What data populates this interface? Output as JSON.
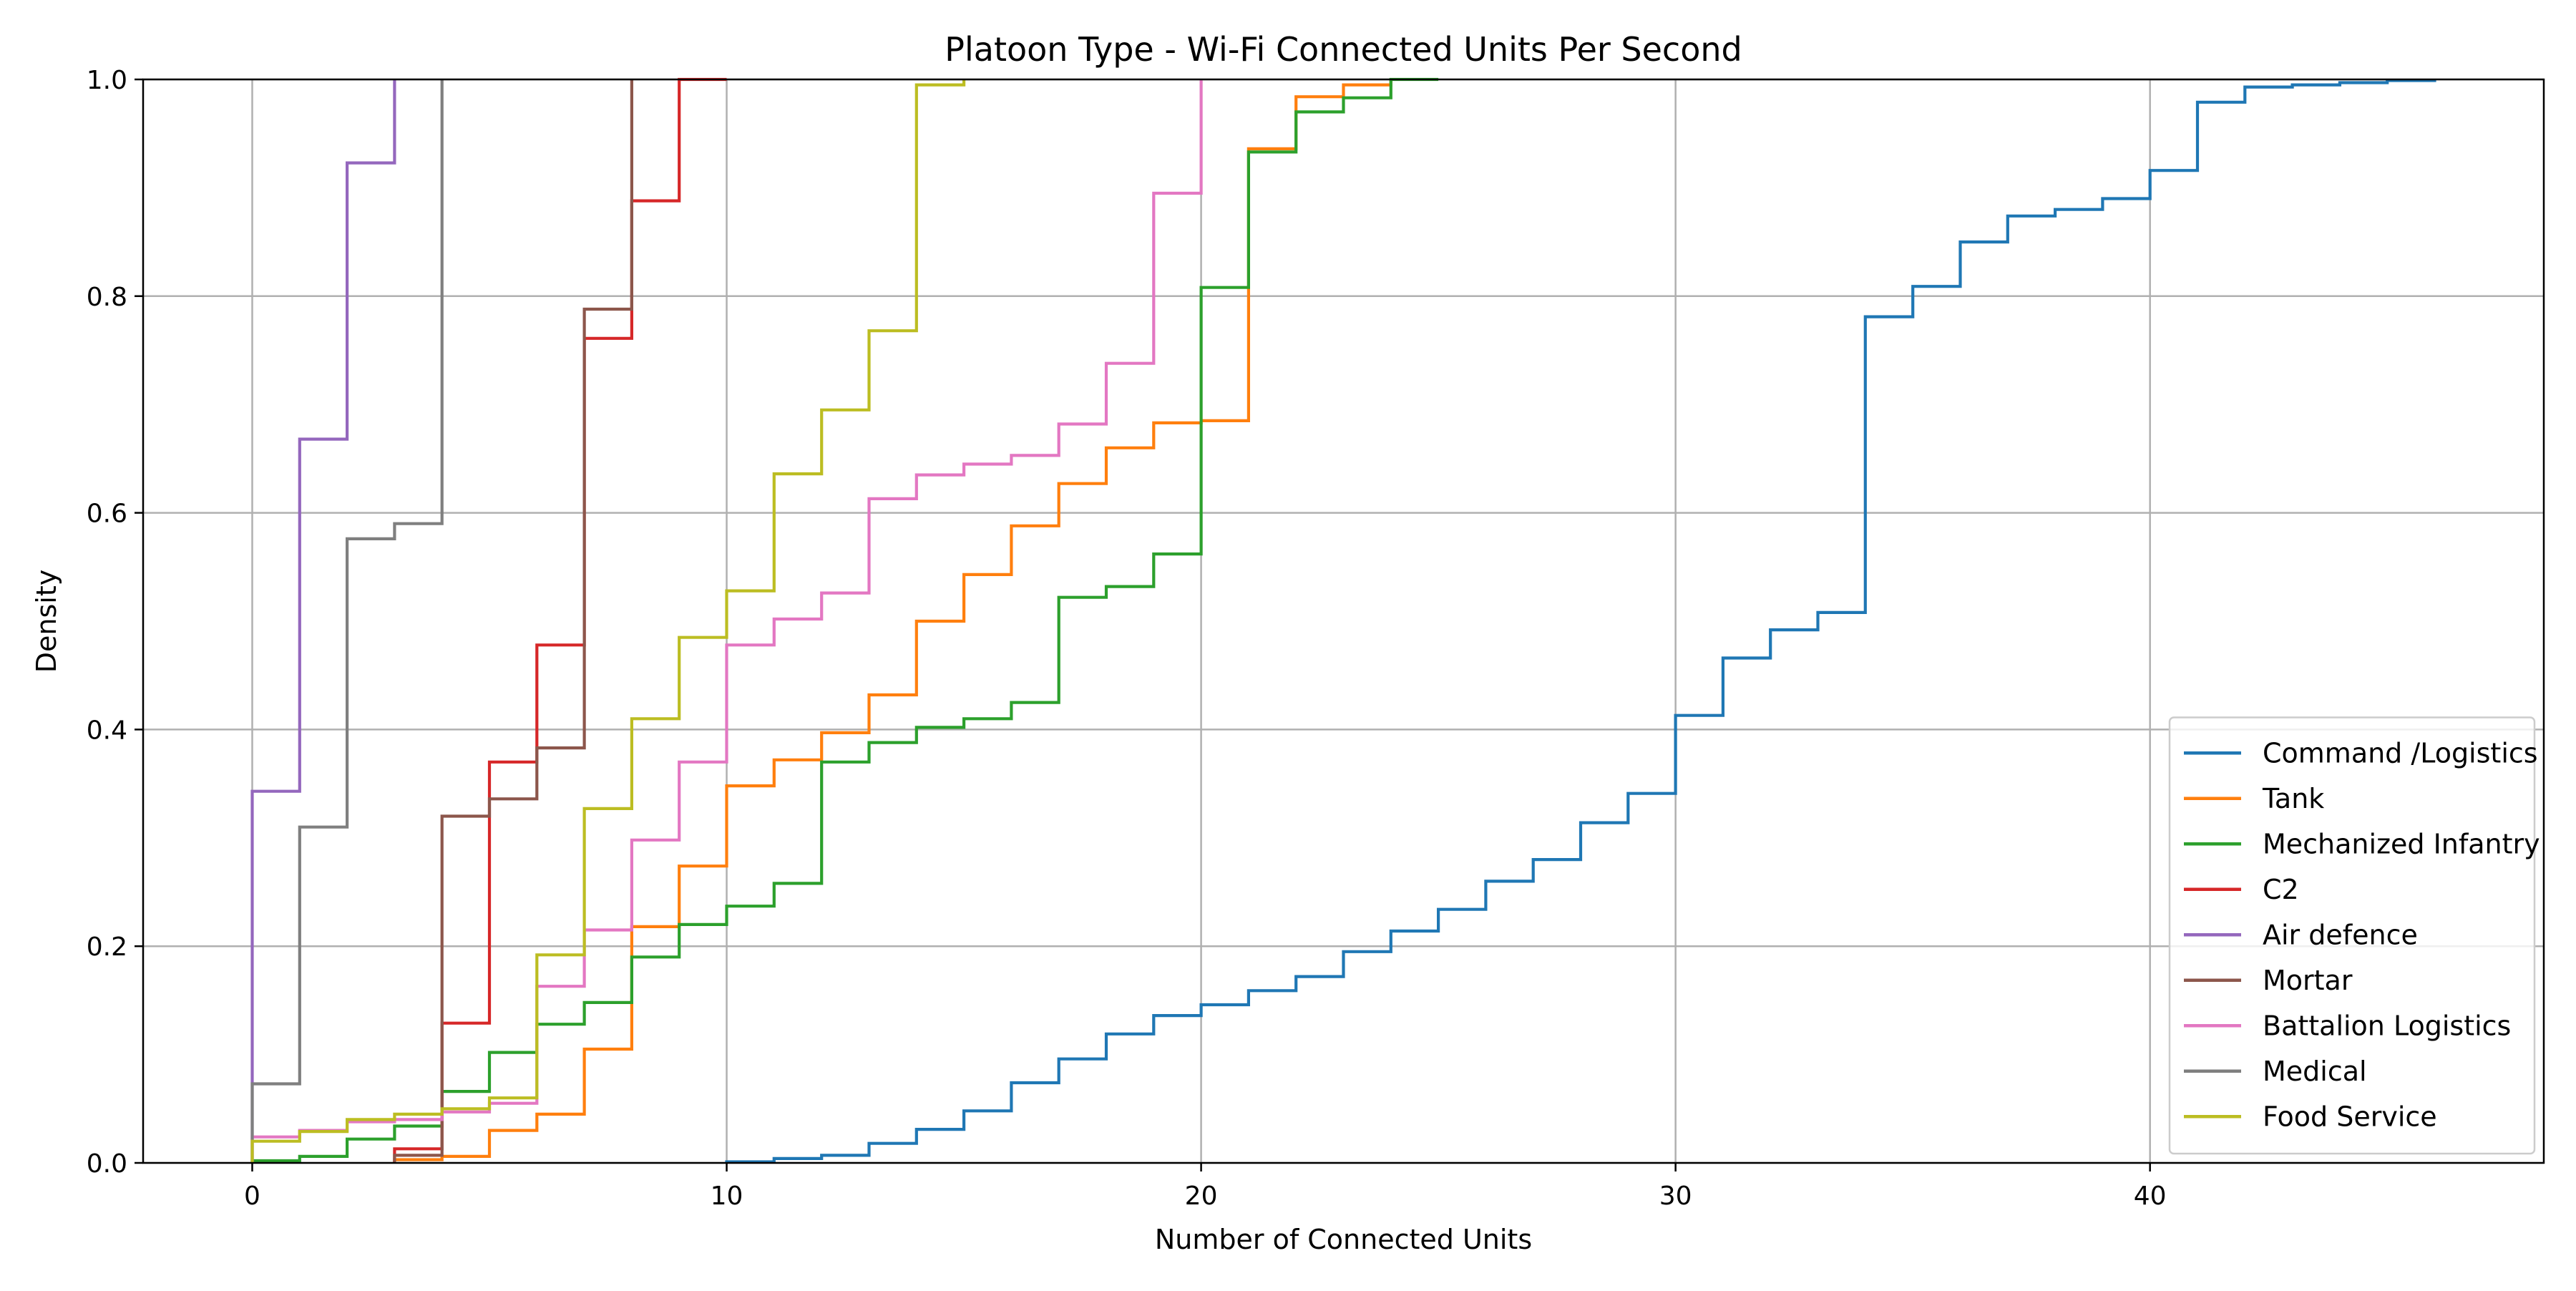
{
  "chart_data": {
    "type": "line",
    "step": "post",
    "title": "Platoon Type - Wi-Fi Connected Units Per Second",
    "xlabel": "Number of Connected Units",
    "ylabel": "Density",
    "xlim": [
      -2.3,
      48.3
    ],
    "ylim": [
      0,
      1.0
    ],
    "xticks": [
      0,
      10,
      20,
      30,
      40
    ],
    "yticks": [
      0.0,
      0.2,
      0.4,
      0.6,
      0.8,
      1.0
    ],
    "xtick_labels": [
      "0",
      "10",
      "20",
      "30",
      "40"
    ],
    "ytick_labels": [
      "0.0",
      "0.2",
      "0.4",
      "0.6",
      "0.8",
      "1.0"
    ],
    "grid": true,
    "legend_position": "bottom-right",
    "series": [
      {
        "name": "Command /Logistics",
        "color": "#1f77b4",
        "x": [
          10,
          11,
          12,
          13,
          14,
          15,
          16,
          17,
          18,
          19,
          20,
          21,
          22,
          23,
          24,
          25,
          26,
          27,
          28,
          29,
          30,
          31,
          32,
          33,
          34,
          35,
          36,
          37,
          38,
          39,
          40,
          41,
          42,
          43,
          44,
          45,
          46
        ],
        "y": [
          0.001,
          0.004,
          0.007,
          0.018,
          0.031,
          0.048,
          0.074,
          0.096,
          0.119,
          0.136,
          0.146,
          0.159,
          0.172,
          0.195,
          0.214,
          0.234,
          0.26,
          0.28,
          0.314,
          0.341,
          0.413,
          0.466,
          0.492,
          0.508,
          0.781,
          0.809,
          0.85,
          0.874,
          0.88,
          0.89,
          0.916,
          0.979,
          0.993,
          0.995,
          0.997,
          0.999,
          1.0
        ]
      },
      {
        "name": "Tank",
        "color": "#ff7f0e",
        "x": [
          3,
          4,
          5,
          6,
          7,
          8,
          9,
          10,
          11,
          12,
          13,
          14,
          15,
          16,
          17,
          18,
          19,
          20,
          21,
          22,
          23,
          24
        ],
        "y": [
          0.003,
          0.006,
          0.03,
          0.045,
          0.105,
          0.218,
          0.274,
          0.348,
          0.372,
          0.397,
          0.432,
          0.5,
          0.543,
          0.588,
          0.627,
          0.66,
          0.683,
          0.685,
          0.936,
          0.984,
          0.995,
          1.0
        ]
      },
      {
        "name": "Mechanized Infantry",
        "color": "#2ca02c",
        "x": [
          0,
          1,
          2,
          3,
          4,
          5,
          6,
          7,
          8,
          9,
          10,
          11,
          12,
          13,
          14,
          15,
          16,
          17,
          18,
          19,
          20,
          21,
          22,
          23,
          24,
          25
        ],
        "y": [
          0.002,
          0.006,
          0.022,
          0.034,
          0.066,
          0.102,
          0.128,
          0.148,
          0.19,
          0.22,
          0.237,
          0.258,
          0.37,
          0.388,
          0.402,
          0.41,
          0.425,
          0.522,
          0.532,
          0.562,
          0.808,
          0.933,
          0.97,
          0.983,
          1.0,
          1.0
        ]
      },
      {
        "name": "C2",
        "color": "#d62728",
        "x": [
          3,
          4,
          5,
          6,
          7,
          8,
          9,
          10
        ],
        "y": [
          0.013,
          0.129,
          0.37,
          0.478,
          0.761,
          0.888,
          1.0,
          1.0
        ]
      },
      {
        "name": "Air defence",
        "color": "#9467bd",
        "x": [
          0,
          1,
          2,
          3
        ],
        "y": [
          0.343,
          0.668,
          0.923,
          1.0
        ]
      },
      {
        "name": "Mortar",
        "color": "#8c564b",
        "x": [
          3,
          4,
          5,
          6,
          7,
          8
        ],
        "y": [
          0.007,
          0.32,
          0.336,
          0.383,
          0.788,
          1.0
        ]
      },
      {
        "name": "Battalion Logistics",
        "color": "#e377c2",
        "x": [
          0,
          1,
          2,
          3,
          4,
          5,
          6,
          7,
          8,
          9,
          10,
          11,
          12,
          13,
          14,
          15,
          16,
          17,
          18,
          19,
          20
        ],
        "y": [
          0.024,
          0.03,
          0.038,
          0.04,
          0.047,
          0.055,
          0.163,
          0.215,
          0.298,
          0.37,
          0.478,
          0.502,
          0.526,
          0.613,
          0.635,
          0.645,
          0.653,
          0.682,
          0.738,
          0.895,
          1.0
        ]
      },
      {
        "name": "Medical",
        "color": "#7f7f7f",
        "x": [
          0,
          1,
          2,
          3,
          4
        ],
        "y": [
          0.073,
          0.31,
          0.576,
          0.59,
          1.0
        ]
      },
      {
        "name": "Food Service",
        "color": "#bcbd22",
        "x": [
          0,
          1,
          2,
          3,
          4,
          5,
          6,
          7,
          8,
          9,
          10,
          11,
          12,
          13,
          14,
          15
        ],
        "y": [
          0.02,
          0.029,
          0.04,
          0.045,
          0.05,
          0.06,
          0.192,
          0.327,
          0.41,
          0.485,
          0.528,
          0.636,
          0.695,
          0.768,
          0.995,
          1.0
        ]
      }
    ]
  }
}
